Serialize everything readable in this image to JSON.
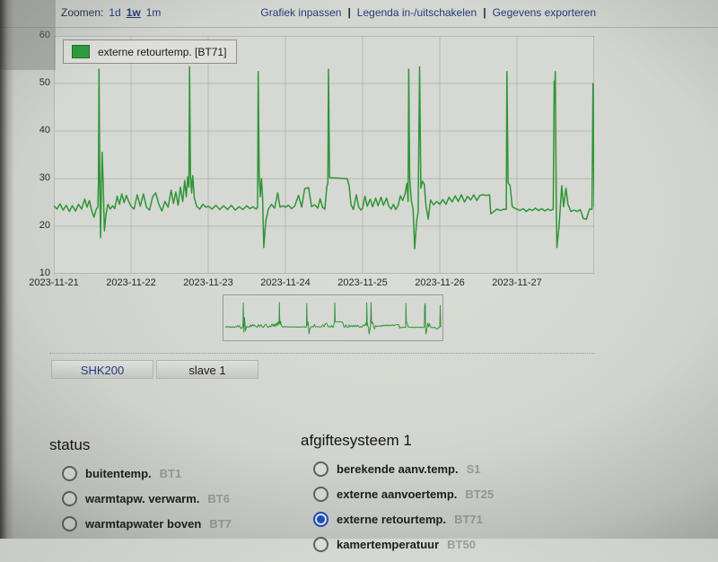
{
  "toolbar": {
    "zoom_label": "Zoomen:",
    "zoom_options": [
      {
        "label": "1d",
        "active": false
      },
      {
        "label": "1w",
        "active": true
      },
      {
        "label": "1m",
        "active": false
      }
    ],
    "separator": "|",
    "links": [
      "Grafiek inpassen",
      "Legenda in-/uitschakelen",
      "Gegevens exporteren"
    ]
  },
  "chart_data": {
    "type": "line",
    "title": "",
    "legend_label": "externe retourtemp. [BT71]",
    "legend_position": "top-left",
    "grid": true,
    "ylim": [
      10,
      60
    ],
    "y_ticks": [
      10,
      20,
      30,
      40,
      50,
      60
    ],
    "x_range_days": [
      0,
      7
    ],
    "x_tick_labels": [
      "2023-11-21",
      "2023-11-22",
      "2023-11-23",
      "2023-11-24",
      "2023-11-25",
      "2023-11-26",
      "2023-11-27"
    ],
    "line_color": "#2f9537",
    "series": [
      {
        "name": "externe retourtemp. [BT71]",
        "points": [
          [
            0.0,
            24.3
          ],
          [
            0.04,
            23.6
          ],
          [
            0.08,
            24.7
          ],
          [
            0.12,
            23.4
          ],
          [
            0.16,
            24.4
          ],
          [
            0.2,
            23.1
          ],
          [
            0.24,
            24.3
          ],
          [
            0.28,
            23.2
          ],
          [
            0.32,
            24.6
          ],
          [
            0.36,
            23.6
          ],
          [
            0.4,
            25.7
          ],
          [
            0.43,
            24.0
          ],
          [
            0.46,
            25.4
          ],
          [
            0.49,
            23.3
          ],
          [
            0.52,
            21.9
          ],
          [
            0.55,
            23.6
          ],
          [
            0.57,
            24.0
          ],
          [
            0.578,
            29.0
          ],
          [
            0.585,
            53.0
          ],
          [
            0.597,
            28.0
          ],
          [
            0.605,
            17.6
          ],
          [
            0.625,
            35.5
          ],
          [
            0.64,
            29.0
          ],
          [
            0.655,
            19.0
          ],
          [
            0.675,
            22.5
          ],
          [
            0.7,
            24.6
          ],
          [
            0.73,
            23.6
          ],
          [
            0.76,
            24.3
          ],
          [
            0.79,
            23.7
          ],
          [
            0.82,
            26.3
          ],
          [
            0.85,
            24.6
          ],
          [
            0.88,
            26.8
          ],
          [
            0.91,
            25.0
          ],
          [
            0.94,
            26.5
          ],
          [
            0.97,
            25.2
          ],
          [
            1.0,
            24.2
          ],
          [
            1.04,
            23.6
          ],
          [
            1.08,
            26.6
          ],
          [
            1.12,
            24.2
          ],
          [
            1.16,
            26.8
          ],
          [
            1.2,
            24.0
          ],
          [
            1.24,
            23.4
          ],
          [
            1.28,
            26.2
          ],
          [
            1.32,
            27.0
          ],
          [
            1.36,
            24.6
          ],
          [
            1.4,
            23.2
          ],
          [
            1.44,
            25.2
          ],
          [
            1.48,
            24.0
          ],
          [
            1.52,
            27.6
          ],
          [
            1.55,
            24.8
          ],
          [
            1.58,
            27.2
          ],
          [
            1.61,
            24.4
          ],
          [
            1.64,
            28.2
          ],
          [
            1.67,
            25.2
          ],
          [
            1.695,
            29.6
          ],
          [
            1.715,
            26.2
          ],
          [
            1.735,
            30.4
          ],
          [
            1.75,
            28.2
          ],
          [
            1.758,
            53.5
          ],
          [
            1.77,
            31.0
          ],
          [
            1.785,
            27.0
          ],
          [
            1.8,
            30.6
          ],
          [
            1.82,
            26.0
          ],
          [
            1.85,
            24.2
          ],
          [
            1.89,
            23.6
          ],
          [
            1.93,
            24.6
          ],
          [
            1.97,
            24.0
          ],
          [
            2.0,
            24.2
          ],
          [
            2.05,
            23.6
          ],
          [
            2.1,
            24.4
          ],
          [
            2.15,
            23.5
          ],
          [
            2.2,
            24.3
          ],
          [
            2.25,
            23.5
          ],
          [
            2.3,
            24.4
          ],
          [
            2.35,
            23.4
          ],
          [
            2.4,
            24.1
          ],
          [
            2.45,
            23.5
          ],
          [
            2.5,
            24.3
          ],
          [
            2.54,
            23.7
          ],
          [
            2.58,
            24.1
          ],
          [
            2.62,
            23.6
          ],
          [
            2.64,
            24.0
          ],
          [
            2.648,
            52.5
          ],
          [
            2.66,
            31.0
          ],
          [
            2.675,
            26.2
          ],
          [
            2.69,
            30.0
          ],
          [
            2.705,
            26.0
          ],
          [
            2.72,
            15.5
          ],
          [
            2.745,
            21.0
          ],
          [
            2.78,
            23.6
          ],
          [
            2.82,
            24.6
          ],
          [
            2.86,
            23.8
          ],
          [
            2.9,
            27.0
          ],
          [
            2.93,
            24.0
          ],
          [
            2.97,
            24.3
          ],
          [
            3.0,
            24.0
          ],
          [
            3.04,
            24.4
          ],
          [
            3.08,
            23.7
          ],
          [
            3.12,
            24.2
          ],
          [
            3.17,
            26.5
          ],
          [
            3.21,
            24.0
          ],
          [
            3.25,
            27.9
          ],
          [
            3.3,
            28.1
          ],
          [
            3.34,
            24.1
          ],
          [
            3.38,
            24.5
          ],
          [
            3.42,
            23.8
          ],
          [
            3.45,
            25.8
          ],
          [
            3.48,
            24.0
          ],
          [
            3.51,
            23.6
          ],
          [
            3.538,
            28.5
          ],
          [
            3.55,
            29.0
          ],
          [
            3.558,
            53.0
          ],
          [
            3.572,
            30.2
          ],
          [
            3.8,
            30.0
          ],
          [
            3.825,
            28.5
          ],
          [
            3.85,
            24.5
          ],
          [
            3.88,
            23.5
          ],
          [
            3.92,
            26.6
          ],
          [
            3.95,
            24.0
          ],
          [
            3.98,
            23.4
          ],
          [
            4.0,
            23.8
          ],
          [
            4.03,
            26.3
          ],
          [
            4.06,
            24.2
          ],
          [
            4.1,
            25.7
          ],
          [
            4.13,
            24.1
          ],
          [
            4.17,
            25.9
          ],
          [
            4.2,
            24.3
          ],
          [
            4.24,
            26.1
          ],
          [
            4.27,
            24.4
          ],
          [
            4.31,
            25.9
          ],
          [
            4.34,
            24.2
          ],
          [
            4.37,
            23.6
          ],
          [
            4.4,
            24.6
          ],
          [
            4.43,
            23.5
          ],
          [
            4.46,
            24.4
          ],
          [
            4.49,
            26.4
          ],
          [
            4.52,
            25.4
          ],
          [
            4.55,
            26.8
          ],
          [
            4.575,
            29.0
          ],
          [
            4.59,
            25.2
          ],
          [
            4.598,
            53.0
          ],
          [
            4.61,
            30.0
          ],
          [
            4.63,
            25.5
          ],
          [
            4.655,
            23.5
          ],
          [
            4.675,
            15.3
          ],
          [
            4.7,
            21.0
          ],
          [
            4.72,
            23.0
          ],
          [
            4.738,
            53.5
          ],
          [
            4.755,
            28.0
          ],
          [
            4.775,
            29.5
          ],
          [
            4.8,
            28.8
          ],
          [
            4.82,
            24.5
          ],
          [
            4.85,
            21.5
          ],
          [
            4.88,
            25.5
          ],
          [
            4.92,
            24.5
          ],
          [
            4.96,
            25.2
          ],
          [
            5.0,
            24.6
          ],
          [
            5.04,
            25.6
          ],
          [
            5.08,
            24.6
          ],
          [
            5.12,
            26.1
          ],
          [
            5.16,
            25.1
          ],
          [
            5.2,
            26.4
          ],
          [
            5.24,
            25.2
          ],
          [
            5.28,
            26.6
          ],
          [
            5.32,
            25.1
          ],
          [
            5.36,
            26.3
          ],
          [
            5.4,
            25.5
          ],
          [
            5.44,
            26.6
          ],
          [
            5.48,
            25.4
          ],
          [
            5.52,
            26.5
          ],
          [
            5.56,
            26.6
          ],
          [
            5.6,
            26.5
          ],
          [
            5.645,
            26.6
          ],
          [
            5.66,
            22.6
          ],
          [
            5.7,
            23.1
          ],
          [
            5.74,
            23.6
          ],
          [
            5.79,
            23.3
          ],
          [
            5.83,
            23.6
          ],
          [
            5.862,
            23.5
          ],
          [
            5.87,
            52.5
          ],
          [
            5.885,
            29.1
          ],
          [
            5.91,
            28.6
          ],
          [
            5.94,
            24.1
          ],
          [
            5.97,
            23.8
          ],
          [
            6.0,
            23.6
          ],
          [
            6.04,
            23.3
          ],
          [
            6.08,
            23.7
          ],
          [
            6.12,
            23.1
          ],
          [
            6.16,
            23.6
          ],
          [
            6.2,
            23.3
          ],
          [
            6.24,
            23.8
          ],
          [
            6.28,
            23.3
          ],
          [
            6.32,
            23.7
          ],
          [
            6.36,
            23.2
          ],
          [
            6.4,
            23.6
          ],
          [
            6.44,
            23.3
          ],
          [
            6.47,
            23.6
          ],
          [
            6.482,
            50.5
          ],
          [
            6.49,
            46.0
          ],
          [
            6.497,
            52.5
          ],
          [
            6.51,
            23.0
          ],
          [
            6.518,
            15.5
          ],
          [
            6.545,
            20.0
          ],
          [
            6.58,
            28.5
          ],
          [
            6.605,
            24.1
          ],
          [
            6.635,
            28.0
          ],
          [
            6.66,
            24.6
          ],
          [
            6.7,
            23.1
          ],
          [
            6.74,
            23.4
          ],
          [
            6.78,
            23.1
          ],
          [
            6.82,
            23.5
          ],
          [
            6.86,
            21.6
          ],
          [
            6.9,
            21.5
          ],
          [
            6.94,
            23.6
          ],
          [
            6.972,
            23.5
          ],
          [
            6.985,
            50.0
          ],
          [
            7.0,
            24.0
          ]
        ]
      }
    ]
  },
  "tabs": [
    {
      "label": "SHK200",
      "style": "link"
    },
    {
      "label": "slave 1",
      "style": "current"
    }
  ],
  "sections": [
    {
      "title": "status",
      "items": [
        {
          "label": "buitentemp.",
          "code": "BT1",
          "selected": false
        },
        {
          "label": "warmtapw. verwarm.",
          "code": "BT6",
          "selected": false
        },
        {
          "label": "warmtapwater boven",
          "code": "BT7",
          "selected": false
        }
      ]
    },
    {
      "title": "afgiftesysteem 1",
      "items": [
        {
          "label": "berekende aanv.temp.",
          "code": "S1",
          "selected": false
        },
        {
          "label": "externe aanvoertemp.",
          "code": "BT25",
          "selected": false
        },
        {
          "label": "externe retourtemp.",
          "code": "BT71",
          "selected": true
        },
        {
          "label": "kamertemperatuur",
          "code": "BT50",
          "selected": false
        }
      ]
    }
  ],
  "colors": {
    "line_green": "#2f9537",
    "legend_swatch_green": "#2f9e3c",
    "link_blue": "#213c7d",
    "radio_selected_blue": "#1e4fc2",
    "plot_background": "#d6d8d3",
    "grid_line": "#b5b7b2"
  }
}
